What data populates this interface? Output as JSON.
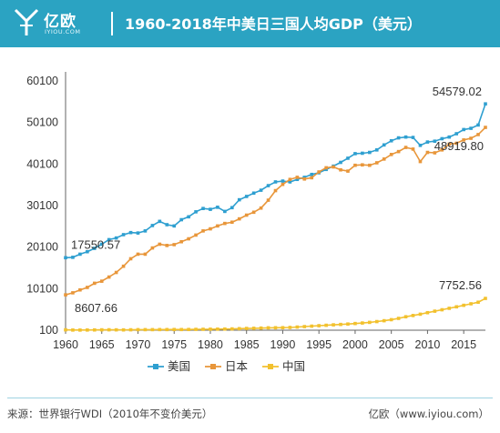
{
  "header": {
    "brand_name": "亿欧",
    "brand_domain": "IYIOU.COM",
    "title": "1960-2018年中美日三国人均GDP（美元）",
    "background_color": "#2ba3c2"
  },
  "footer": {
    "source": "来源：世界银行WDI（2010年不变价美元）",
    "credit": "亿欧（www.iyiou.com）"
  },
  "chart_data": {
    "type": "line",
    "title": "1960-2018年中美日三国人均GDP（美元）",
    "xlabel": "",
    "ylabel": "",
    "x_ticks": [
      1960,
      1965,
      1970,
      1975,
      1980,
      1985,
      1990,
      1995,
      2000,
      2005,
      2010,
      2015
    ],
    "y_ticks": [
      100,
      10100,
      20100,
      30100,
      40100,
      50100,
      60100
    ],
    "xlim": [
      1960,
      2018
    ],
    "ylim": [
      100,
      60100
    ],
    "grid": false,
    "legend_position": "bottom",
    "x": [
      1960,
      1961,
      1962,
      1963,
      1964,
      1965,
      1966,
      1967,
      1968,
      1969,
      1970,
      1971,
      1972,
      1973,
      1974,
      1975,
      1976,
      1977,
      1978,
      1979,
      1980,
      1981,
      1982,
      1983,
      1984,
      1985,
      1986,
      1987,
      1988,
      1989,
      1990,
      1991,
      1992,
      1993,
      1994,
      1995,
      1996,
      1997,
      1998,
      1999,
      2000,
      2001,
      2002,
      2003,
      2004,
      2005,
      2006,
      2007,
      2008,
      2009,
      2010,
      2011,
      2012,
      2013,
      2014,
      2015,
      2016,
      2017,
      2018
    ],
    "series": [
      {
        "name": "美国",
        "color": "#2e9fd0",
        "values": [
          17550.57,
          17650,
          18400,
          19000,
          19800,
          20800,
          21900,
          22300,
          23100,
          23600,
          23500,
          24000,
          25300,
          26300,
          25500,
          25200,
          26700,
          27400,
          28600,
          29400,
          29200,
          29700,
          28700,
          29600,
          31500,
          32300,
          33100,
          33800,
          34900,
          35800,
          36000,
          35800,
          36400,
          36900,
          37600,
          38000,
          38800,
          39600,
          40500,
          41500,
          42600,
          42700,
          42900,
          43500,
          44700,
          45700,
          46400,
          46600,
          46500,
          44600,
          45400,
          45600,
          46200,
          46600,
          47400,
          48400,
          48700,
          49500,
          54579.02
        ],
        "end_label": "54579.02",
        "start_label": "17550.57"
      },
      {
        "name": "日本",
        "color": "#e8963a",
        "values": [
          8607.66,
          9100,
          9800,
          10400,
          11400,
          11900,
          12900,
          14000,
          15500,
          17300,
          18400,
          18400,
          19900,
          20800,
          20500,
          20700,
          21400,
          22100,
          23000,
          24000,
          24500,
          25200,
          25800,
          26100,
          26900,
          27800,
          28500,
          29500,
          31400,
          33700,
          35200,
          36400,
          36900,
          36500,
          36800,
          38200,
          39200,
          39400,
          38700,
          38400,
          39800,
          39900,
          39800,
          40400,
          41300,
          42400,
          43100,
          44100,
          43700,
          40700,
          42900,
          42800,
          43500,
          44900,
          45100,
          45900,
          46300,
          47200,
          48919.8
        ],
        "end_label": "48919.80",
        "start_label": "8607.66"
      },
      {
        "name": "中国",
        "color": "#f2c12e",
        "values": [
          191,
          140,
          133,
          146,
          168,
          191,
          202,
          185,
          173,
          199,
          228,
          233,
          234,
          247,
          250,
          265,
          256,
          271,
          302,
          320,
          342,
          354,
          380,
          414,
          468,
          523,
          560,
          614,
          674,
          692,
          707,
          762,
          859,
          966,
          1081,
          1185,
          1289,
          1394,
          1488,
          1587,
          1706,
          1833,
          1986,
          2173,
          2381,
          2632,
          2946,
          3338,
          3637,
          3953,
          4318,
          4683,
          5020,
          5374,
          5733,
          6095,
          6460,
          6840,
          7752.56
        ],
        "end_label": "7752.56"
      }
    ]
  }
}
